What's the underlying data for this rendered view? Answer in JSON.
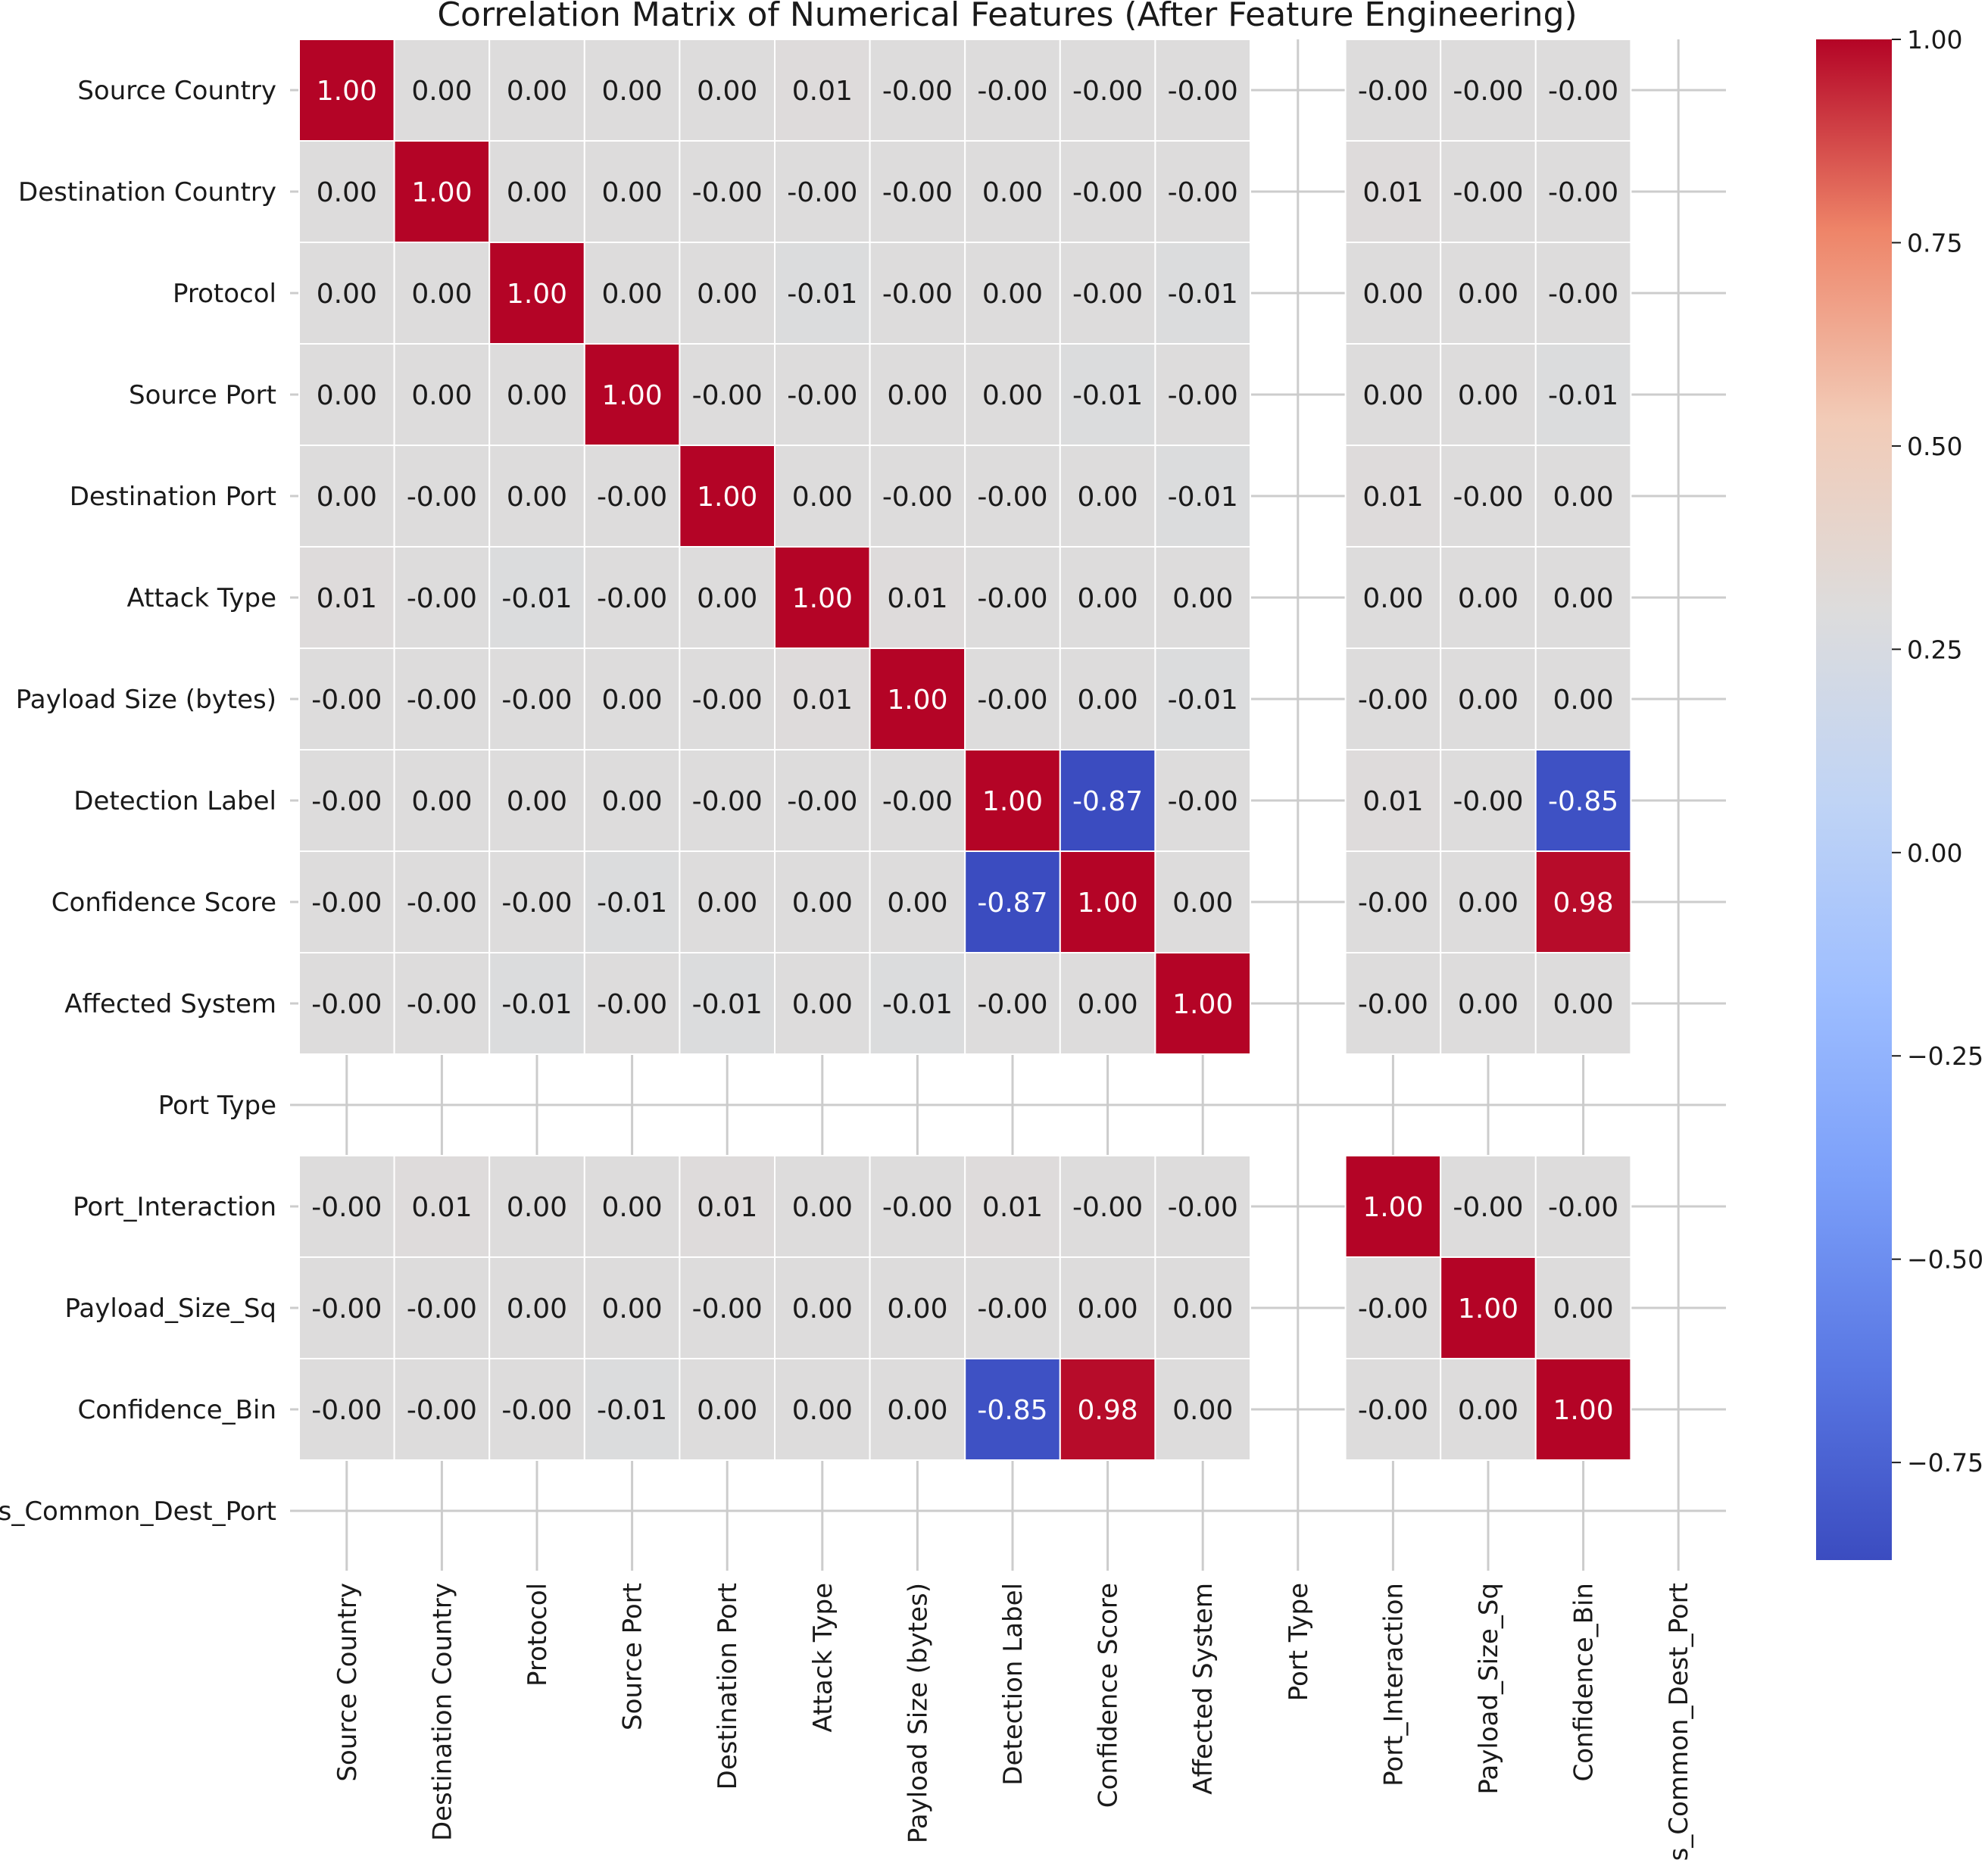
{
  "chart_data": {
    "type": "heatmap",
    "title": "Correlation Matrix of Numerical Features (After Feature Engineering)",
    "xlabel": "",
    "ylabel": "",
    "labels": [
      "Source Country",
      "Destination Country",
      "Protocol",
      "Source Port",
      "Destination Port",
      "Attack Type",
      "Payload Size (bytes)",
      "Detection Label",
      "Confidence Score",
      "Affected System",
      "Port Type",
      "Port_Interaction",
      "Payload_Size_Sq",
      "Confidence_Bin",
      "Is_Common_Dest_Port"
    ],
    "annotations": [
      [
        "1.00",
        "0.00",
        "0.00",
        "0.00",
        "0.00",
        "0.01",
        "-0.00",
        "-0.00",
        "-0.00",
        "-0.00",
        null,
        "-0.00",
        "-0.00",
        "-0.00",
        null
      ],
      [
        "0.00",
        "1.00",
        "0.00",
        "0.00",
        "-0.00",
        "-0.00",
        "-0.00",
        "0.00",
        "-0.00",
        "-0.00",
        null,
        "0.01",
        "-0.00",
        "-0.00",
        null
      ],
      [
        "0.00",
        "0.00",
        "1.00",
        "0.00",
        "0.00",
        "-0.01",
        "-0.00",
        "0.00",
        "-0.00",
        "-0.01",
        null,
        "0.00",
        "0.00",
        "-0.00",
        null
      ],
      [
        "0.00",
        "0.00",
        "0.00",
        "1.00",
        "-0.00",
        "-0.00",
        "0.00",
        "0.00",
        "-0.01",
        "-0.00",
        null,
        "0.00",
        "0.00",
        "-0.01",
        null
      ],
      [
        "0.00",
        "-0.00",
        "0.00",
        "-0.00",
        "1.00",
        "0.00",
        "-0.00",
        "-0.00",
        "0.00",
        "-0.01",
        null,
        "0.01",
        "-0.00",
        "0.00",
        null
      ],
      [
        "0.01",
        "-0.00",
        "-0.01",
        "-0.00",
        "0.00",
        "1.00",
        "0.01",
        "-0.00",
        "0.00",
        "0.00",
        null,
        "0.00",
        "0.00",
        "0.00",
        null
      ],
      [
        "-0.00",
        "-0.00",
        "-0.00",
        "0.00",
        "-0.00",
        "0.01",
        "1.00",
        "-0.00",
        "0.00",
        "-0.01",
        null,
        "-0.00",
        "0.00",
        "0.00",
        null
      ],
      [
        "-0.00",
        "0.00",
        "0.00",
        "0.00",
        "-0.00",
        "-0.00",
        "-0.00",
        "1.00",
        "-0.87",
        "-0.00",
        null,
        "0.01",
        "-0.00",
        "-0.85",
        null
      ],
      [
        "-0.00",
        "-0.00",
        "-0.00",
        "-0.01",
        "0.00",
        "0.00",
        "0.00",
        "-0.87",
        "1.00",
        "0.00",
        null,
        "-0.00",
        "0.00",
        "0.98",
        null
      ],
      [
        "-0.00",
        "-0.00",
        "-0.01",
        "-0.00",
        "-0.01",
        "0.00",
        "-0.01",
        "-0.00",
        "0.00",
        "1.00",
        null,
        "-0.00",
        "0.00",
        "0.00",
        null
      ],
      [
        null,
        null,
        null,
        null,
        null,
        null,
        null,
        null,
        null,
        null,
        null,
        null,
        null,
        null,
        null
      ],
      [
        "-0.00",
        "0.01",
        "0.00",
        "0.00",
        "0.01",
        "0.00",
        "-0.00",
        "0.01",
        "-0.00",
        "-0.00",
        null,
        "1.00",
        "-0.00",
        "-0.00",
        null
      ],
      [
        "-0.00",
        "-0.00",
        "0.00",
        "0.00",
        "-0.00",
        "0.00",
        "0.00",
        "-0.00",
        "0.00",
        "0.00",
        null,
        "-0.00",
        "1.00",
        "0.00",
        null
      ],
      [
        "-0.00",
        "-0.00",
        "-0.00",
        "-0.01",
        "0.00",
        "0.00",
        "0.00",
        "-0.85",
        "0.98",
        "0.00",
        null,
        "-0.00",
        "0.00",
        "1.00",
        null
      ],
      [
        null,
        null,
        null,
        null,
        null,
        null,
        null,
        null,
        null,
        null,
        null,
        null,
        null,
        null,
        null
      ]
    ],
    "colorbar": {
      "colormap": "coolwarm",
      "vmin": -0.87,
      "vmax": 1.0,
      "ticks": [
        "1.00",
        "0.75",
        "0.50",
        "0.25",
        "0.00",
        "−0.25",
        "−0.50",
        "−0.75"
      ]
    },
    "colors": {
      "high": "#b40426",
      "mid": "#dddcdc",
      "low": "#3b4cc0",
      "grid": "#cccccc",
      "text_dark": "#1a1a1a",
      "text_light": "#ffffff"
    }
  }
}
